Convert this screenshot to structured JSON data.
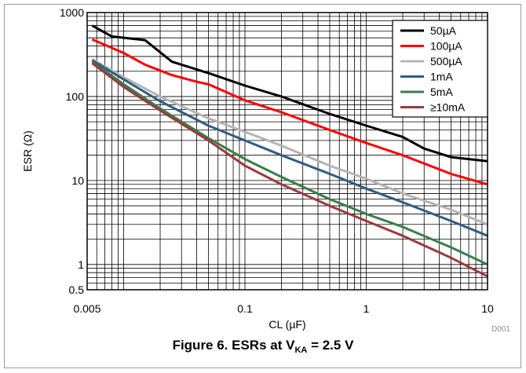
{
  "chart_data": {
    "type": "line",
    "xscale": "log",
    "yscale": "log",
    "xlim": [
      0.005,
      10
    ],
    "ylim": [
      0.5,
      1000
    ],
    "xlabel": "CL (µF)",
    "ylabel": "ESR (Ω)",
    "x_ticks": [
      0.005,
      0.1,
      1,
      10
    ],
    "x_tick_labels": [
      "0.005",
      "0.1",
      "1",
      "10"
    ],
    "y_ticks": [
      0.5,
      1,
      10,
      100,
      1000
    ],
    "y_tick_labels": [
      "0.5",
      "1",
      "10",
      "100",
      "1000"
    ],
    "grid": true,
    "legend_position": "top-right",
    "series": [
      {
        "name": "50µA",
        "color": "#000000",
        "x": [
          0.0055,
          0.008,
          0.015,
          0.025,
          0.05,
          0.1,
          0.2,
          0.5,
          1,
          2,
          3,
          5,
          10
        ],
        "y": [
          700,
          520,
          470,
          260,
          190,
          135,
          100,
          62,
          45,
          33,
          24,
          19,
          17
        ]
      },
      {
        "name": "100µA",
        "color": "#ff0000",
        "x": [
          0.0055,
          0.01,
          0.015,
          0.025,
          0.04,
          0.05,
          0.1,
          0.2,
          0.5,
          1,
          2,
          5,
          10
        ],
        "y": [
          480,
          330,
          240,
          180,
          150,
          140,
          90,
          65,
          40,
          28,
          20,
          12,
          9
        ]
      },
      {
        "name": "500µA",
        "color": "#b4b4b4",
        "x": [
          0.0055,
          0.01,
          0.02,
          0.05,
          0.1,
          0.2,
          0.5,
          1,
          2,
          5,
          10
        ],
        "y": [
          280,
          170,
          100,
          55,
          38,
          26,
          15,
          10.5,
          7,
          4.5,
          3
        ]
      },
      {
        "name": "1mA",
        "color": "#305c83",
        "x": [
          0.0055,
          0.01,
          0.02,
          0.05,
          0.1,
          0.2,
          0.5,
          1,
          2,
          5,
          10
        ],
        "y": [
          270,
          160,
          88,
          45,
          30,
          20,
          12,
          8,
          5.5,
          3.3,
          2.2
        ]
      },
      {
        "name": "5mA",
        "color": "#3a7d4a",
        "x": [
          0.0055,
          0.01,
          0.02,
          0.05,
          0.1,
          0.2,
          0.5,
          1,
          2,
          5,
          10
        ],
        "y": [
          260,
          140,
          72,
          32,
          18,
          11,
          6,
          4,
          2.8,
          1.6,
          1
        ]
      },
      {
        "name": "≥10mA",
        "color": "#9b3a3a",
        "x": [
          0.0055,
          0.01,
          0.02,
          0.05,
          0.1,
          0.2,
          0.5,
          1,
          2,
          5,
          10
        ],
        "y": [
          250,
          130,
          68,
          30,
          15,
          9,
          5,
          3.3,
          2.2,
          1.2,
          0.72
        ]
      }
    ]
  },
  "caption": {
    "prefix": "Figure 6. ESRs at V",
    "subscript": "KA",
    "suffix": " = 2.5 V"
  },
  "figure_code": "D001"
}
